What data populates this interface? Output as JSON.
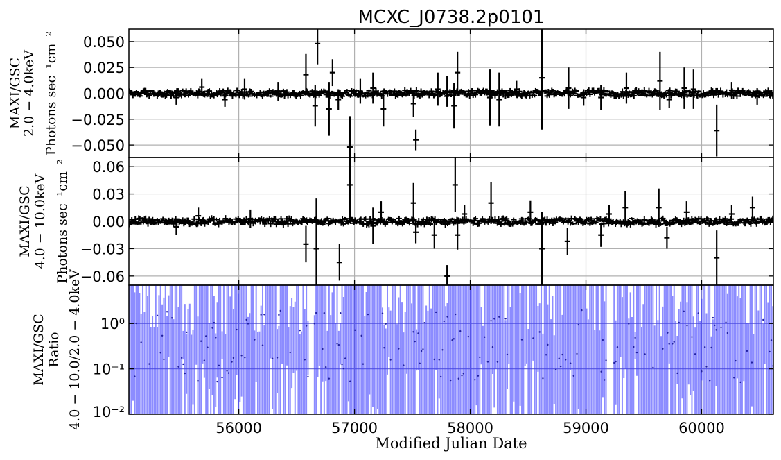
{
  "chart_data": {
    "type": "scatter",
    "title": "MCXC_J0738.2p0101",
    "xlabel": "Modified Julian Date",
    "xlim": [
      55050,
      60620
    ],
    "xticks": [
      56000,
      57000,
      58000,
      59000,
      60000
    ],
    "xtick_labels": [
      "56000",
      "57000",
      "58000",
      "59000",
      "60000"
    ],
    "grid": true,
    "panels": [
      {
        "name": "soft",
        "ylabel": [
          "MAXI/GSC",
          "2.0 − 4.0keV",
          "Photons sec⁻¹cm⁻²"
        ],
        "ylim": [
          -0.062,
          0.062
        ],
        "yscale": "linear",
        "yticks": [
          -0.05,
          -0.025,
          0.0,
          0.025,
          0.05
        ],
        "ytick_labels": [
          "−0.050",
          "−0.025",
          "0.000",
          "0.025",
          "0.050"
        ],
        "color": "#000000",
        "spikes": [
          {
            "x": 55460,
            "y": -0.004,
            "err": 0.007
          },
          {
            "x": 55680,
            "y": 0.006,
            "err": 0.008
          },
          {
            "x": 55880,
            "y": -0.006,
            "err": 0.007
          },
          {
            "x": 56050,
            "y": 0.004,
            "err": 0.01
          },
          {
            "x": 56340,
            "y": 0.002,
            "err": 0.009
          },
          {
            "x": 56580,
            "y": 0.018,
            "err": 0.02
          },
          {
            "x": 56660,
            "y": -0.012,
            "err": 0.02
          },
          {
            "x": 56680,
            "y": 0.048,
            "err": 0.02
          },
          {
            "x": 56780,
            "y": -0.015,
            "err": 0.026
          },
          {
            "x": 56810,
            "y": 0.02,
            "err": 0.013
          },
          {
            "x": 56860,
            "y": -0.006,
            "err": 0.01
          },
          {
            "x": 56960,
            "y": -0.052,
            "err": 0.03
          },
          {
            "x": 57050,
            "y": 0.002,
            "err": 0.012
          },
          {
            "x": 57160,
            "y": 0.005,
            "err": 0.015
          },
          {
            "x": 57250,
            "y": -0.015,
            "err": 0.017
          },
          {
            "x": 57510,
            "y": -0.01,
            "err": 0.013
          },
          {
            "x": 57530,
            "y": -0.045,
            "err": 0.01
          },
          {
            "x": 57720,
            "y": 0.004,
            "err": 0.016
          },
          {
            "x": 57800,
            "y": 0.002,
            "err": 0.015
          },
          {
            "x": 57860,
            "y": -0.012,
            "err": 0.022
          },
          {
            "x": 57890,
            "y": 0.02,
            "err": 0.02
          },
          {
            "x": 58170,
            "y": -0.004,
            "err": 0.027
          },
          {
            "x": 58250,
            "y": -0.006,
            "err": 0.026
          },
          {
            "x": 58400,
            "y": 0.004,
            "err": 0.008
          },
          {
            "x": 58620,
            "y": 0.015,
            "err": 0.05
          },
          {
            "x": 58850,
            "y": 0.005,
            "err": 0.02
          },
          {
            "x": 58980,
            "y": -0.004,
            "err": 0.008
          },
          {
            "x": 59130,
            "y": -0.004,
            "err": 0.012
          },
          {
            "x": 59350,
            "y": 0.005,
            "err": 0.015
          },
          {
            "x": 59640,
            "y": 0.012,
            "err": 0.028
          },
          {
            "x": 59720,
            "y": -0.006,
            "err": 0.008
          },
          {
            "x": 59850,
            "y": 0.005,
            "err": 0.02
          },
          {
            "x": 59930,
            "y": 0.004,
            "err": 0.019
          },
          {
            "x": 60130,
            "y": -0.036,
            "err": 0.025
          },
          {
            "x": 60260,
            "y": 0.003,
            "err": 0.008
          },
          {
            "x": 60480,
            "y": -0.003,
            "err": 0.008
          }
        ]
      },
      {
        "name": "hard",
        "ylabel": [
          "MAXI/GSC",
          "4.0 − 10.0keV",
          "Photons sec⁻¹cm⁻²"
        ],
        "ylim": [
          -0.07,
          0.07
        ],
        "yscale": "linear",
        "yticks": [
          -0.06,
          -0.03,
          0.0,
          0.03,
          0.06
        ],
        "ytick_labels": [
          "−0.06",
          "−0.03",
          "0.00",
          "0.03",
          "0.06"
        ],
        "color": "#000000",
        "spikes": [
          {
            "x": 55460,
            "y": -0.006,
            "err": 0.009
          },
          {
            "x": 55650,
            "y": 0.006,
            "err": 0.009
          },
          {
            "x": 56100,
            "y": 0.003,
            "err": 0.01
          },
          {
            "x": 56580,
            "y": -0.025,
            "err": 0.02
          },
          {
            "x": 56670,
            "y": -0.03,
            "err": 0.055
          },
          {
            "x": 56870,
            "y": -0.045,
            "err": 0.02
          },
          {
            "x": 56960,
            "y": 0.04,
            "err": 0.04
          },
          {
            "x": 57160,
            "y": -0.005,
            "err": 0.02
          },
          {
            "x": 57230,
            "y": 0.01,
            "err": 0.012
          },
          {
            "x": 57510,
            "y": 0.02,
            "err": 0.022
          },
          {
            "x": 57530,
            "y": -0.012,
            "err": 0.012
          },
          {
            "x": 57690,
            "y": -0.015,
            "err": 0.015
          },
          {
            "x": 57800,
            "y": -0.06,
            "err": 0.012
          },
          {
            "x": 57870,
            "y": 0.04,
            "err": 0.03
          },
          {
            "x": 57890,
            "y": -0.015,
            "err": 0.016
          },
          {
            "x": 57950,
            "y": 0.008,
            "err": 0.01
          },
          {
            "x": 58180,
            "y": 0.02,
            "err": 0.023
          },
          {
            "x": 58520,
            "y": 0.01,
            "err": 0.013
          },
          {
            "x": 58620,
            "y": -0.03,
            "err": 0.04
          },
          {
            "x": 58840,
            "y": -0.022,
            "err": 0.015
          },
          {
            "x": 59130,
            "y": -0.015,
            "err": 0.013
          },
          {
            "x": 59200,
            "y": 0.008,
            "err": 0.01
          },
          {
            "x": 59340,
            "y": 0.015,
            "err": 0.018
          },
          {
            "x": 59630,
            "y": 0.015,
            "err": 0.021
          },
          {
            "x": 59700,
            "y": -0.018,
            "err": 0.012
          },
          {
            "x": 59870,
            "y": 0.01,
            "err": 0.012
          },
          {
            "x": 60130,
            "y": -0.04,
            "err": 0.03
          },
          {
            "x": 60260,
            "y": 0.008,
            "err": 0.01
          },
          {
            "x": 60440,
            "y": 0.015,
            "err": 0.012
          }
        ]
      },
      {
        "name": "ratio",
        "ylabel": [
          "MAXI/GSC",
          "Ratio",
          "4.0 − 10.0/2.0 − 4.0keV"
        ],
        "ylim": [
          0.01,
          7
        ],
        "yscale": "log",
        "yticks": [
          0.01,
          0.1,
          1
        ],
        "ytick_labels": [
          "10⁻²",
          "10⁻¹",
          "10⁰"
        ],
        "color": "#4040ff"
      }
    ]
  }
}
